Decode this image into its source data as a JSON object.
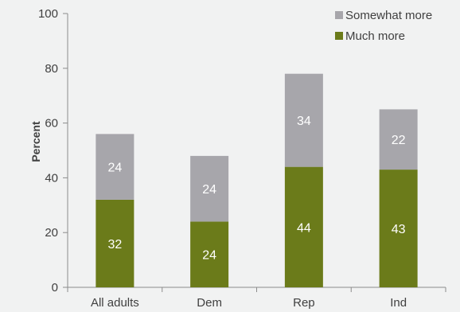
{
  "chart_data": {
    "type": "bar",
    "stacked": true,
    "categories": [
      "All adults",
      "Dem",
      "Rep",
      "Ind"
    ],
    "series": [
      {
        "name": "Much more",
        "values": [
          32,
          24,
          44,
          43
        ],
        "color": "#6b7b1a"
      },
      {
        "name": "Somewhat more",
        "values": [
          24,
          24,
          34,
          22
        ],
        "color": "#a7a6ab"
      }
    ],
    "title": "",
    "xlabel": "",
    "ylabel": "Percent",
    "ylim": [
      0,
      100
    ],
    "yticks": [
      0,
      20,
      40,
      60,
      80,
      100
    ],
    "grid": false,
    "legend": {
      "position": "top-right",
      "entries": [
        "Somewhat more",
        "Much more"
      ]
    },
    "background": "#f1f2f2"
  }
}
